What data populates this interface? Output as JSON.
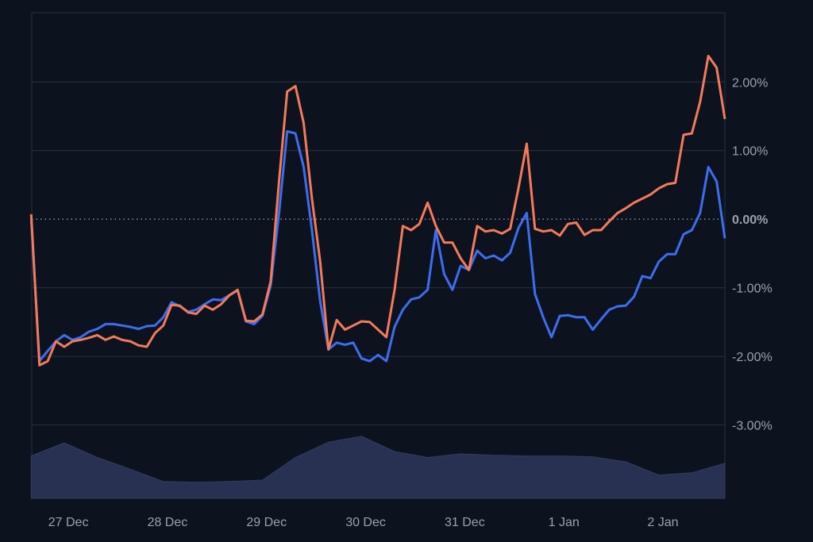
{
  "chart_data": {
    "type": "line",
    "title": "",
    "xlabel": "",
    "ylabel": "",
    "x_unit": "hours since 26 Dec 15:00 (2-hour steps)",
    "x_step_hours": 2,
    "ylim": [
      -4.07,
      3.01
    ],
    "y_ticks": [
      2,
      1,
      0,
      -1,
      -2,
      -3
    ],
    "y_tick_labels": [
      "2.00%",
      "1.00%",
      "0.00%",
      "-1.00%",
      "-2.00%",
      "-3.00%"
    ],
    "x_ticks_hours": [
      9,
      33,
      57,
      81,
      105,
      129,
      153
    ],
    "x_tick_labels": [
      "27 Dec",
      "28 Dec",
      "29 Dec",
      "30 Dec",
      "31 Dec",
      "1 Jan",
      "2 Jan"
    ],
    "grid": true,
    "zero_line": "dotted",
    "series": [
      {
        "name": "orange",
        "color": "#f47a5a",
        "values": [
          0.07,
          -2.13,
          -2.07,
          -1.78,
          -1.86,
          -1.78,
          -1.76,
          -1.73,
          -1.69,
          -1.76,
          -1.71,
          -1.76,
          -1.78,
          -1.84,
          -1.86,
          -1.66,
          -1.55,
          -1.25,
          -1.26,
          -1.36,
          -1.38,
          -1.26,
          -1.32,
          -1.24,
          -1.11,
          -1.03,
          -1.48,
          -1.49,
          -1.39,
          -0.91,
          0.53,
          1.86,
          1.94,
          1.4,
          0.3,
          -0.62,
          -1.9,
          -1.47,
          -1.61,
          -1.55,
          -1.49,
          -1.5,
          -1.61,
          -1.72,
          -1.03,
          -0.1,
          -0.16,
          -0.07,
          0.24,
          -0.1,
          -0.34,
          -0.34,
          -0.57,
          -0.74,
          -0.1,
          -0.18,
          -0.16,
          -0.21,
          -0.14,
          0.45,
          1.1,
          -0.14,
          -0.18,
          -0.16,
          -0.24,
          -0.07,
          -0.05,
          -0.23,
          -0.16,
          -0.16,
          -0.03,
          0.09,
          0.16,
          0.24,
          0.3,
          0.36,
          0.45,
          0.51,
          0.53,
          1.23,
          1.25,
          1.71,
          2.38,
          2.21,
          1.46
        ]
      },
      {
        "name": "blue",
        "color": "#3d6df0",
        "values": [
          0.0,
          -2.07,
          -1.92,
          -1.78,
          -1.69,
          -1.76,
          -1.72,
          -1.64,
          -1.6,
          -1.53,
          -1.53,
          -1.55,
          -1.57,
          -1.6,
          -1.56,
          -1.55,
          -1.43,
          -1.21,
          -1.27,
          -1.35,
          -1.32,
          -1.24,
          -1.17,
          -1.18,
          -1.11,
          -1.04,
          -1.49,
          -1.53,
          -1.41,
          -0.97,
          0.07,
          1.28,
          1.25,
          0.76,
          -0.16,
          -1.2,
          -1.9,
          -1.8,
          -1.83,
          -1.8,
          -2.03,
          -2.07,
          -1.98,
          -2.07,
          -1.57,
          -1.32,
          -1.17,
          -1.14,
          -1.03,
          -0.16,
          -0.8,
          -1.03,
          -0.68,
          -0.74,
          -0.46,
          -0.57,
          -0.53,
          -0.6,
          -0.49,
          -0.13,
          0.09,
          -1.09,
          -1.43,
          -1.72,
          -1.41,
          -1.4,
          -1.43,
          -1.43,
          -1.61,
          -1.46,
          -1.32,
          -1.27,
          -1.26,
          -1.13,
          -0.83,
          -0.86,
          -0.62,
          -0.51,
          -0.51,
          -0.22,
          -0.16,
          0.09,
          0.76,
          0.55,
          -0.28
        ]
      }
    ],
    "volume": {
      "name": "volume",
      "color": "#283152",
      "x_step_hours": 8,
      "unit": "relative",
      "ylim": [
        0,
        100
      ],
      "values": [
        58,
        76,
        56,
        40,
        23,
        22,
        23,
        25,
        56,
        77,
        85,
        64,
        56,
        61,
        59,
        58,
        58,
        57,
        50,
        32,
        35,
        48
      ]
    }
  },
  "colors": {
    "background": "#0d131e",
    "grid": "#283040",
    "axis_text": "#9aa1ad"
  }
}
